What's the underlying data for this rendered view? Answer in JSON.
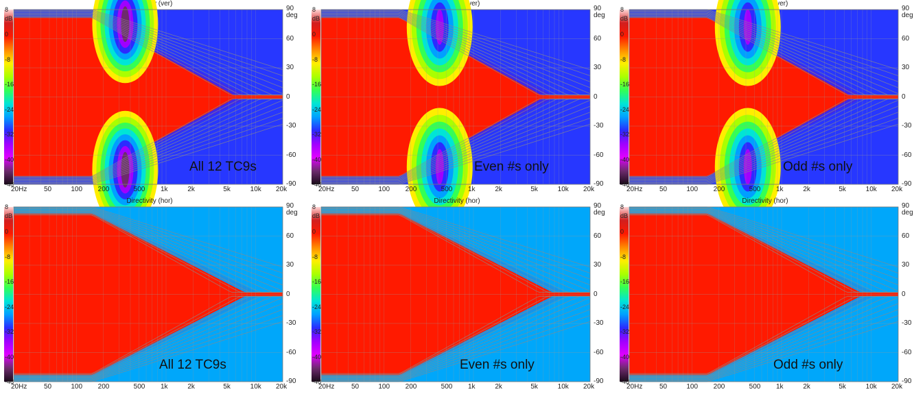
{
  "colors": {
    "colormap": [
      "#d21e1e",
      "#ff1a00",
      "#ff8a00",
      "#ffee00",
      "#aaff00",
      "#33ff55",
      "#00e5d6",
      "#00a0ff",
      "#2b2bff",
      "#a000ff",
      "#e000ff",
      "#6d2b6d"
    ]
  },
  "chart_data": [
    {
      "type": "heatmap",
      "title": "Directivity (ver)",
      "caption": "All 12 TC9s",
      "x_ticks": [
        "20Hz",
        "50",
        "100",
        "200",
        "500",
        "1k",
        "2k",
        "5k",
        "10k",
        "20k"
      ],
      "x_values": [
        20,
        50,
        100,
        200,
        500,
        1000,
        2000,
        5000,
        10000,
        20000
      ],
      "xlim": [
        20,
        20000
      ],
      "x_scale": "log",
      "y_ticks": [
        "90",
        "60",
        "30",
        "0",
        "-30",
        "-60",
        "-90"
      ],
      "y_unit": "deg",
      "ylim": [
        -90,
        90
      ],
      "color_scale": {
        "unit": "dB",
        "ticks": [
          "8",
          "0",
          "-8",
          "-16",
          "-24",
          "-32",
          "-40",
          "-48"
        ],
        "range": [
          -48,
          8
        ]
      },
      "grid": true,
      "lobe": {
        "frequency": 350,
        "angle": 75,
        "depth": 1.0
      },
      "null_pattern": "symmetric",
      "max_level_db": -48
    },
    {
      "type": "heatmap",
      "title": "Directivity (ver)",
      "caption": "Even #s only",
      "x_ticks": [
        "20Hz",
        "50",
        "100",
        "200",
        "500",
        "1k",
        "2k",
        "5k",
        "10k",
        "20k"
      ],
      "x_values": [
        20,
        50,
        100,
        200,
        500,
        1000,
        2000,
        5000,
        10000,
        20000
      ],
      "xlim": [
        20,
        20000
      ],
      "x_scale": "log",
      "y_ticks": [
        "90",
        "60",
        "30",
        "0",
        "-30",
        "-60",
        "-90"
      ],
      "y_unit": "deg",
      "ylim": [
        -90,
        90
      ],
      "color_scale": {
        "unit": "dB",
        "ticks": [
          "8",
          "0",
          "-8",
          "-16",
          "-24",
          "-32",
          "-40",
          "-48"
        ],
        "range": [
          -48,
          8
        ]
      },
      "grid": true,
      "lobe": {
        "frequency": 420,
        "angle": 72,
        "depth": 0.9
      },
      "null_pattern": "symmetric",
      "max_level_db": -40
    },
    {
      "type": "heatmap",
      "title": "Directivity (ver)",
      "caption": "Odd #s only",
      "x_ticks": [
        "20Hz",
        "50",
        "100",
        "200",
        "500",
        "1k",
        "2k",
        "5k",
        "10k",
        "20k"
      ],
      "x_values": [
        20,
        50,
        100,
        200,
        500,
        1000,
        2000,
        5000,
        10000,
        20000
      ],
      "xlim": [
        20,
        20000
      ],
      "x_scale": "log",
      "y_ticks": [
        "90",
        "60",
        "30",
        "0",
        "-30",
        "-60",
        "-90"
      ],
      "y_unit": "deg",
      "ylim": [
        -90,
        90
      ],
      "color_scale": {
        "unit": "dB",
        "ticks": [
          "8",
          "0",
          "-8",
          "-16",
          "-24",
          "-32",
          "-40",
          "-48"
        ],
        "range": [
          -48,
          8
        ]
      },
      "grid": true,
      "lobe": {
        "frequency": 420,
        "angle": 72,
        "depth": 0.9
      },
      "null_pattern": "symmetric",
      "max_level_db": -40
    },
    {
      "type": "heatmap",
      "title": "Directivity (hor)",
      "caption": "All 12 TC9s",
      "x_ticks": [
        "20Hz",
        "50",
        "100",
        "200",
        "500",
        "1k",
        "2k",
        "5k",
        "10k",
        "20k"
      ],
      "x_values": [
        20,
        50,
        100,
        200,
        500,
        1000,
        2000,
        5000,
        10000,
        20000
      ],
      "xlim": [
        20,
        20000
      ],
      "x_scale": "log",
      "y_ticks": [
        "90",
        "60",
        "30",
        "0",
        "-30",
        "-60",
        "-90"
      ],
      "y_unit": "deg",
      "ylim": [
        -90,
        90
      ],
      "color_scale": {
        "unit": "dB",
        "ticks": [
          "8",
          "0",
          "-8",
          "-16",
          "-24",
          "-32",
          "-40",
          "-48"
        ],
        "range": [
          -48,
          8
        ]
      },
      "grid": true,
      "lobe": null,
      "null_pattern": "none",
      "max_level_db": -30
    },
    {
      "type": "heatmap",
      "title": "Directivity (hor)",
      "caption": "Even #s only",
      "x_ticks": [
        "20Hz",
        "50",
        "100",
        "200",
        "500",
        "1k",
        "2k",
        "5k",
        "10k",
        "20k"
      ],
      "x_values": [
        20,
        50,
        100,
        200,
        500,
        1000,
        2000,
        5000,
        10000,
        20000
      ],
      "xlim": [
        20,
        20000
      ],
      "x_scale": "log",
      "y_ticks": [
        "90",
        "60",
        "30",
        "0",
        "-30",
        "-60",
        "-90"
      ],
      "y_unit": "deg",
      "ylim": [
        -90,
        90
      ],
      "color_scale": {
        "unit": "dB",
        "ticks": [
          "8",
          "0",
          "-8",
          "-16",
          "-24",
          "-32",
          "-40",
          "-48"
        ],
        "range": [
          -48,
          8
        ]
      },
      "grid": true,
      "lobe": null,
      "null_pattern": "none",
      "max_level_db": -30
    },
    {
      "type": "heatmap",
      "title": "Directivity (hor)",
      "caption": "Odd #s only",
      "x_ticks": [
        "20Hz",
        "50",
        "100",
        "200",
        "500",
        "1k",
        "2k",
        "5k",
        "10k",
        "20k"
      ],
      "x_values": [
        20,
        50,
        100,
        200,
        500,
        1000,
        2000,
        5000,
        10000,
        20000
      ],
      "xlim": [
        20,
        20000
      ],
      "x_scale": "log",
      "y_ticks": [
        "90",
        "60",
        "30",
        "0",
        "-30",
        "-60",
        "-90"
      ],
      "y_unit": "deg",
      "ylim": [
        -90,
        90
      ],
      "color_scale": {
        "unit": "dB",
        "ticks": [
          "8",
          "0",
          "-8",
          "-16",
          "-24",
          "-32",
          "-40",
          "-48"
        ],
        "range": [
          -48,
          8
        ]
      },
      "grid": true,
      "lobe": null,
      "null_pattern": "none",
      "max_level_db": -30
    }
  ]
}
